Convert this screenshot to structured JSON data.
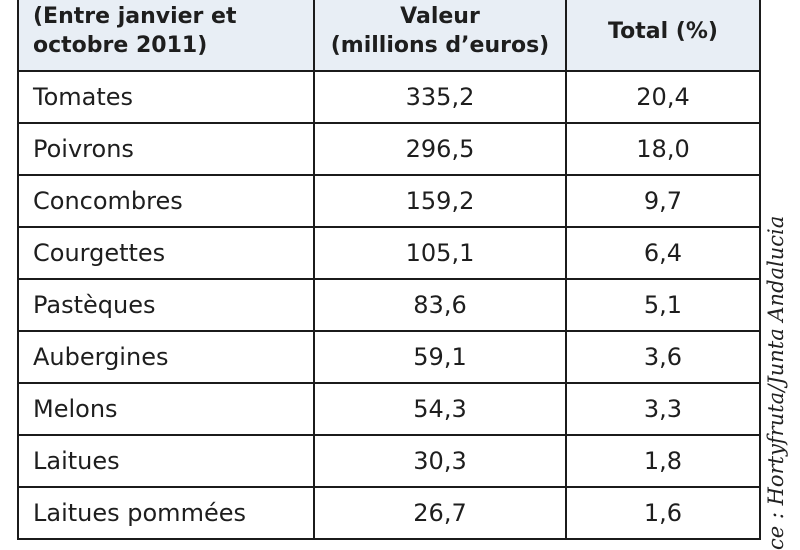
{
  "table": {
    "headers": {
      "col1": [
        "(Entre janvier et",
        "octobre 2011)"
      ],
      "col2": [
        "Valeur",
        "(millions d’euros)"
      ],
      "col3": [
        "Total (%)"
      ]
    },
    "rows": [
      {
        "product": "Tomates",
        "value": "335,2",
        "total": "20,4"
      },
      {
        "product": "Poivrons",
        "value": "296,5",
        "total": "18,0"
      },
      {
        "product": "Concombres",
        "value": "159,2",
        "total": "9,7"
      },
      {
        "product": "Courgettes",
        "value": "105,1",
        "total": "6,4"
      },
      {
        "product": "Pastèques",
        "value": "83,6",
        "total": "5,1"
      },
      {
        "product": "Aubergines",
        "value": "59,1",
        "total": "3,6"
      },
      {
        "product": "Melons",
        "value": "54,3",
        "total": "3,3"
      },
      {
        "product": "Laitues",
        "value": "30,3",
        "total": "1,8"
      },
      {
        "product": "Laitues pommées",
        "value": "26,7",
        "total": "1,6"
      }
    ]
  },
  "source_credit": "ce : Hortyfruta/Junta Andalucia"
}
